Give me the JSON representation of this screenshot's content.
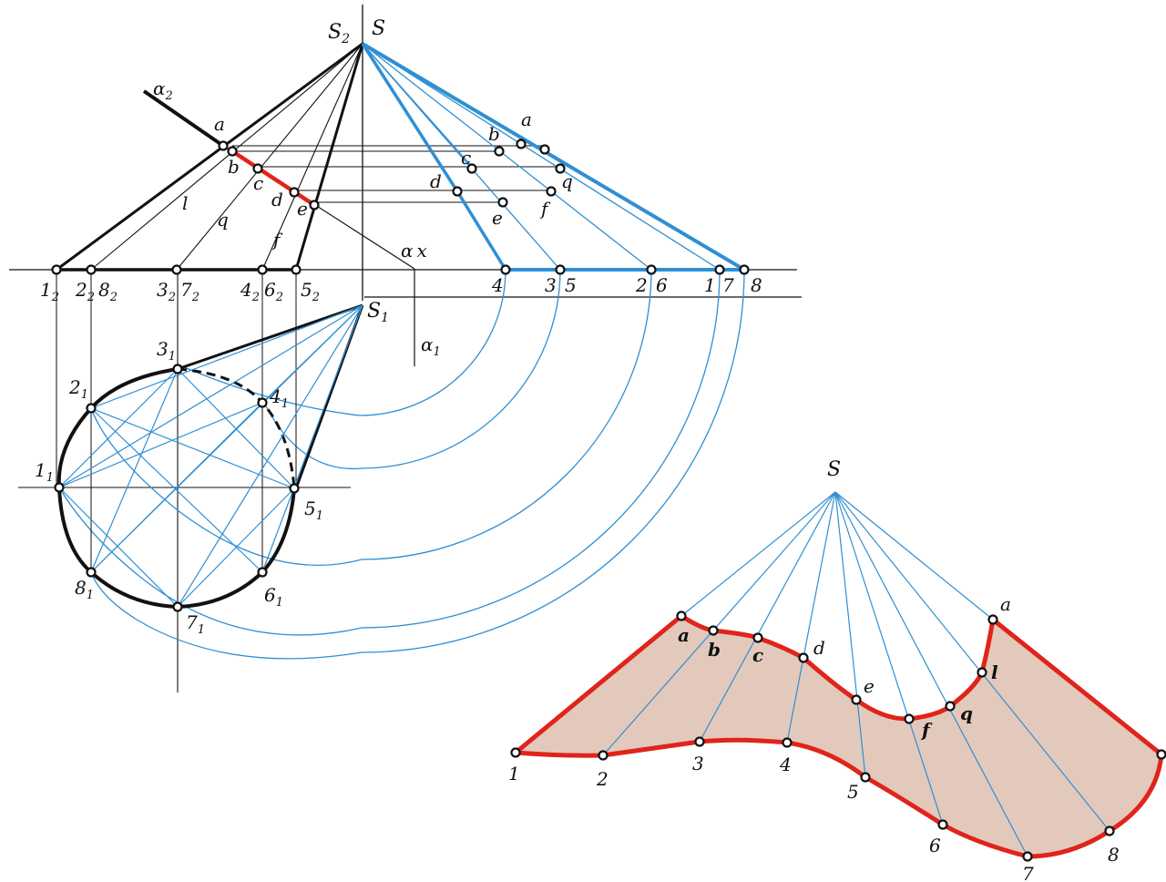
{
  "colors": {
    "black_line": "#111111",
    "blue_line": "#2f8fd3",
    "red_line": "#e0241b",
    "fill_tint": "#d9b7a5"
  },
  "labels": {
    "apex_front": "S",
    "apex_front_sub": "2",
    "apex_true": "S",
    "apex_top": "S",
    "apex_top_sub": "1",
    "apex_development": "S",
    "alpha": "α",
    "alpha_front_sub": "2",
    "alpha_top_sub": "1",
    "axis_x": "x",
    "section_points": [
      "a",
      "b",
      "c",
      "d",
      "e",
      "f",
      "q",
      "l"
    ],
    "base_points": [
      "1",
      "2",
      "3",
      "4",
      "5",
      "6",
      "7",
      "8"
    ],
    "front_sub": "2",
    "top_sub": "1"
  }
}
